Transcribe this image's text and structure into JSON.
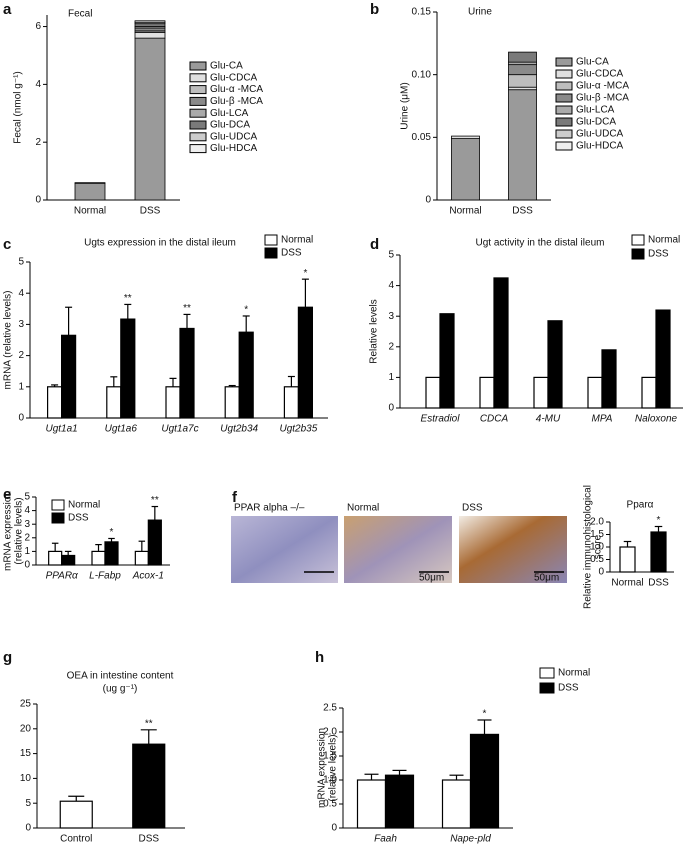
{
  "chart_data": [
    {
      "panel": "a",
      "type": "stacked-bar",
      "title": "Fecal",
      "ylabel": [
        "Fecal (nmol g⁻¹)"
      ],
      "categories": [
        "Normal",
        "DSS"
      ],
      "ylim": [
        0,
        6.4
      ],
      "yticks": [
        0,
        2,
        4,
        6
      ],
      "legend": "right",
      "series": [
        {
          "name": "Glu-CA",
          "color": "#9a9a9a",
          "values": [
            0.58,
            5.6
          ]
        },
        {
          "name": "Glu-CDCA",
          "color": "#e0e0e0",
          "values": [
            0.02,
            0.2
          ]
        },
        {
          "name": "Glu-α -MCA",
          "color": "#bdbdbd",
          "values": [
            0,
            0.05
          ]
        },
        {
          "name": "Glu-β -MCA",
          "color": "#8a8a8a",
          "values": [
            0,
            0.1
          ]
        },
        {
          "name": "Glu-LCA",
          "color": "#aaaaaa",
          "values": [
            0,
            0.05
          ]
        },
        {
          "name": "Glu-DCA",
          "color": "#7a7a7a",
          "values": [
            0,
            0.1
          ]
        },
        {
          "name": "Glu-UDCA",
          "color": "#cccccc",
          "values": [
            0,
            0.05
          ]
        },
        {
          "name": "Glu-HDCA",
          "color": "#efefef",
          "values": [
            0,
            0.05
          ]
        }
      ]
    },
    {
      "panel": "b",
      "type": "stacked-bar",
      "title": "Urine",
      "ylabel": [
        "Urine (μM)"
      ],
      "categories": [
        "Normal",
        "DSS"
      ],
      "ylim": [
        0,
        0.15
      ],
      "yticks": [
        0,
        0.05,
        {
          "value": 0.1,
          "label": "0.10"
        },
        0.15
      ],
      "legend": "right",
      "series": [
        {
          "name": "Glu-CA",
          "color": "#9a9a9a",
          "values": [
            0.049,
            0.088
          ]
        },
        {
          "name": "Glu-CDCA",
          "color": "#e0e0e0",
          "values": [
            0.002,
            0.002
          ]
        },
        {
          "name": "Glu-α -MCA",
          "color": "#bdbdbd",
          "values": [
            0,
            0.01
          ]
        },
        {
          "name": "Glu-β -MCA",
          "color": "#8a8a8a",
          "values": [
            0,
            0.008
          ]
        },
        {
          "name": "Glu-LCA",
          "color": "#aaaaaa",
          "values": [
            0,
            0.002
          ]
        },
        {
          "name": "Glu-DCA",
          "color": "#7a7a7a",
          "values": [
            0,
            0.008
          ]
        },
        {
          "name": "Glu-UDCA",
          "color": "#cccccc",
          "values": [
            0,
            0
          ]
        },
        {
          "name": "Glu-HDCA",
          "color": "#efefef",
          "values": [
            0,
            0
          ]
        }
      ]
    },
    {
      "panel": "c",
      "type": "bar",
      "title": "Ugts expression in the distal ileum",
      "ylabel": [
        "mRNA (relative levels)"
      ],
      "categories": [
        "Ugt1a1",
        "Ugt1a6",
        "Ugt1a7c",
        "Ugt2b34",
        "Ugt2b35"
      ],
      "category_style": "italic",
      "ylim": [
        0,
        5
      ],
      "yticks": [
        0,
        1,
        2,
        3,
        4,
        5
      ],
      "legend": "upper right",
      "series": [
        {
          "name": "Normal",
          "color": "#ffffff",
          "values": [
            1,
            1,
            1,
            1,
            1
          ],
          "errors": [
            0.06,
            0.32,
            0.27,
            0.04,
            0.33
          ]
        },
        {
          "name": "DSS",
          "color": "#000000",
          "values": [
            2.65,
            3.17,
            2.87,
            2.75,
            3.55
          ],
          "errors": [
            0.9,
            0.47,
            0.45,
            0.52,
            0.9
          ],
          "significance": [
            null,
            "**",
            "**",
            "*",
            "*"
          ]
        }
      ]
    },
    {
      "panel": "d",
      "type": "bar",
      "title": "Ugt activity in the distal ileum",
      "ylabel": [
        "Relative levels"
      ],
      "categories": [
        "Estradiol",
        "CDCA",
        "4-MU",
        "MPA",
        "Naloxone"
      ],
      "category_style": "italic",
      "ylim": [
        0,
        5
      ],
      "yticks": [
        0,
        1,
        2,
        3,
        4,
        5
      ],
      "legend": "upper right",
      "series": [
        {
          "name": "Normal",
          "color": "#ffffff",
          "values": [
            1,
            1,
            1,
            1,
            1
          ]
        },
        {
          "name": "DSS",
          "color": "#000000",
          "values": [
            3.08,
            4.25,
            2.85,
            1.9,
            3.2
          ]
        }
      ]
    },
    {
      "panel": "e",
      "type": "bar",
      "ylabel": [
        "mRNA expression",
        "(relative levels)"
      ],
      "categories": [
        "PPARα",
        "L-Fabp",
        "Acox-1"
      ],
      "category_style": "italic",
      "ylim": [
        0,
        5
      ],
      "yticks": [
        0,
        1,
        2,
        3,
        4,
        5
      ],
      "legend": "upper left",
      "series": [
        {
          "name": "Normal",
          "color": "#ffffff",
          "values": [
            1,
            1,
            1
          ],
          "errors": [
            0.6,
            0.5,
            0.75
          ]
        },
        {
          "name": "DSS",
          "color": "#000000",
          "values": [
            0.7,
            1.7,
            3.3
          ],
          "errors": [
            0.3,
            0.25,
            1.0
          ],
          "significance": [
            null,
            "*",
            "**"
          ]
        }
      ]
    },
    {
      "type": "bar",
      "title": "Pparα",
      "ylabel": [
        "Relative immunohistological",
        "score"
      ],
      "categories": [
        "Normal",
        "DSS"
      ],
      "ylim": [
        0,
        2
      ],
      "yticks": [
        0,
        0.5,
        {
          "value": 1,
          "label": "1.0"
        },
        1.5,
        {
          "value": 2,
          "label": "2.0"
        }
      ],
      "series": [
        {
          "colors": [
            "#ffffff",
            "#000000"
          ],
          "values": [
            1.0,
            1.6
          ],
          "errors": [
            0.22,
            0.22
          ],
          "significance": [
            null,
            "*"
          ]
        }
      ]
    },
    {
      "panel": "g",
      "type": "bar",
      "title": "OEA in intestine content",
      "subtitle": "(ug g⁻¹)",
      "categories": [
        "Control",
        "DSS"
      ],
      "ylim": [
        0,
        25
      ],
      "yticks": [
        0,
        5,
        10,
        15,
        20,
        25
      ],
      "series": [
        {
          "colors": [
            "#ffffff",
            "#000000"
          ],
          "values": [
            5.4,
            16.9
          ],
          "errors": [
            1.0,
            2.9
          ],
          "significance": [
            null,
            "**"
          ]
        }
      ]
    },
    {
      "panel": "h",
      "type": "bar",
      "ylabel": [
        "mRNA expression",
        "(relative levels)"
      ],
      "categories": [
        "Faah",
        "Nape-pld"
      ],
      "category_style": "italic",
      "ylim": [
        0,
        2.5
      ],
      "yticks": [
        0,
        0.5,
        {
          "value": 1,
          "label": "1.0"
        },
        1.5,
        {
          "value": 2,
          "label": "2.0"
        },
        2.5
      ],
      "legend": "upper right",
      "series": [
        {
          "name": "Normal",
          "color": "#ffffff",
          "values": [
            1.0,
            1.0
          ],
          "errors": [
            0.12,
            0.1
          ]
        },
        {
          "name": "DSS",
          "color": "#000000",
          "values": [
            1.1,
            1.95
          ],
          "errors": [
            0.1,
            0.3
          ],
          "significance": [
            null,
            "*"
          ]
        }
      ]
    }
  ],
  "micrographs": {
    "panel": "f",
    "labels": [
      "PPAR alpha –/–",
      "Normal",
      "DSS"
    ],
    "scale_bars": [
      "50μm",
      "50μm"
    ]
  }
}
